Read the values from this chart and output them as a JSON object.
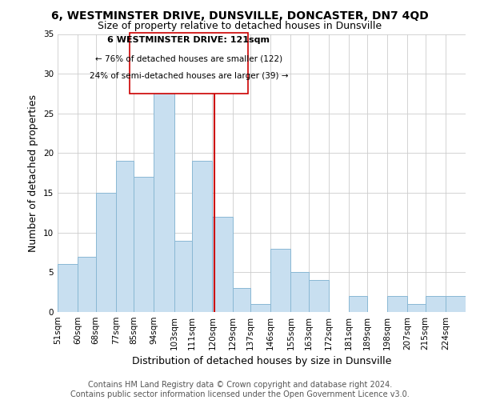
{
  "title": "6, WESTMINSTER DRIVE, DUNSVILLE, DONCASTER, DN7 4QD",
  "subtitle": "Size of property relative to detached houses in Dunsville",
  "xlabel": "Distribution of detached houses by size in Dunsville",
  "ylabel": "Number of detached properties",
  "bin_labels": [
    "51sqm",
    "60sqm",
    "68sqm",
    "77sqm",
    "85sqm",
    "94sqm",
    "103sqm",
    "111sqm",
    "120sqm",
    "129sqm",
    "137sqm",
    "146sqm",
    "155sqm",
    "163sqm",
    "172sqm",
    "181sqm",
    "189sqm",
    "198sqm",
    "207sqm",
    "215sqm",
    "224sqm"
  ],
  "bin_edges": [
    51,
    60,
    68,
    77,
    85,
    94,
    103,
    111,
    120,
    129,
    137,
    146,
    155,
    163,
    172,
    181,
    189,
    198,
    207,
    215,
    224
  ],
  "bar_heights": [
    6,
    7,
    15,
    19,
    17,
    29,
    9,
    19,
    12,
    3,
    1,
    8,
    5,
    4,
    0,
    2,
    0,
    2,
    1,
    2,
    2
  ],
  "bar_color": "#c8dff0",
  "bar_edge_color": "#8ab8d4",
  "property_line_x": 121,
  "property_line_color": "#cc0000",
  "annotation_title": "6 WESTMINSTER DRIVE: 121sqm",
  "annotation_line1": "← 76% of detached houses are smaller (122)",
  "annotation_line2": "24% of semi-detached houses are larger (39) →",
  "annotation_box_color": "#ffffff",
  "annotation_box_edge_color": "#cc0000",
  "ylim": [
    0,
    35
  ],
  "yticks": [
    0,
    5,
    10,
    15,
    20,
    25,
    30,
    35
  ],
  "footer_line1": "Contains HM Land Registry data © Crown copyright and database right 2024.",
  "footer_line2": "Contains public sector information licensed under the Open Government Licence v3.0.",
  "title_fontsize": 10,
  "subtitle_fontsize": 9,
  "axis_label_fontsize": 9,
  "tick_fontsize": 7.5,
  "footer_fontsize": 7,
  "annotation_fontsize": 8
}
